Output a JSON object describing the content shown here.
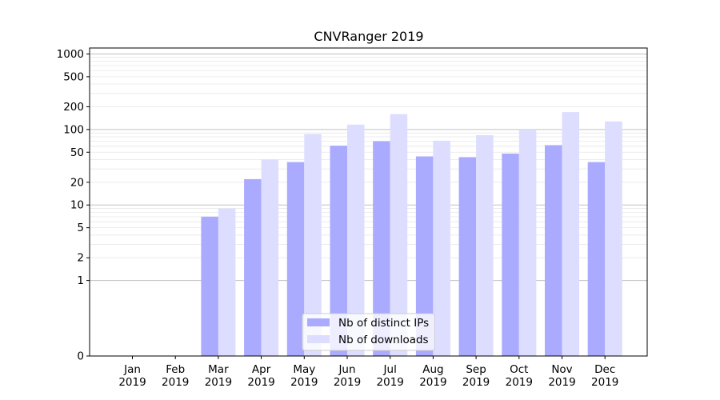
{
  "chart_data": {
    "type": "bar",
    "title": "CNVRanger 2019",
    "xlabel": "",
    "ylabel": "",
    "yscale": "symlog",
    "ylim": [
      0,
      1200
    ],
    "yticks": [
      {
        "value": 0,
        "label": "0"
      },
      {
        "value": 1,
        "label": "1"
      },
      {
        "value": 2,
        "label": "2"
      },
      {
        "value": 5,
        "label": "5"
      },
      {
        "value": 10,
        "label": "10"
      },
      {
        "value": 20,
        "label": "20"
      },
      {
        "value": 50,
        "label": "50"
      },
      {
        "value": 100,
        "label": "100"
      },
      {
        "value": 200,
        "label": "200"
      },
      {
        "value": 500,
        "label": "500"
      },
      {
        "value": 1000,
        "label": "1000"
      }
    ],
    "categories": [
      [
        "Jan",
        "2019"
      ],
      [
        "Feb",
        "2019"
      ],
      [
        "Mar",
        "2019"
      ],
      [
        "Apr",
        "2019"
      ],
      [
        "May",
        "2019"
      ],
      [
        "Jun",
        "2019"
      ],
      [
        "Jul",
        "2019"
      ],
      [
        "Aug",
        "2019"
      ],
      [
        "Sep",
        "2019"
      ],
      [
        "Oct",
        "2019"
      ],
      [
        "Nov",
        "2019"
      ],
      [
        "Dec",
        "2019"
      ]
    ],
    "series": [
      {
        "name": "Nb of distinct IPs",
        "color": "#aaaaff",
        "values": [
          0,
          0,
          7,
          22,
          37,
          61,
          70,
          44,
          43,
          48,
          62,
          37
        ]
      },
      {
        "name": "Nb of downloads",
        "color": "#ddddff",
        "values": [
          0,
          0,
          9,
          40,
          87,
          116,
          160,
          71,
          84,
          100,
          170,
          128
        ]
      }
    ],
    "grid": true,
    "legend": "bottom-center"
  }
}
